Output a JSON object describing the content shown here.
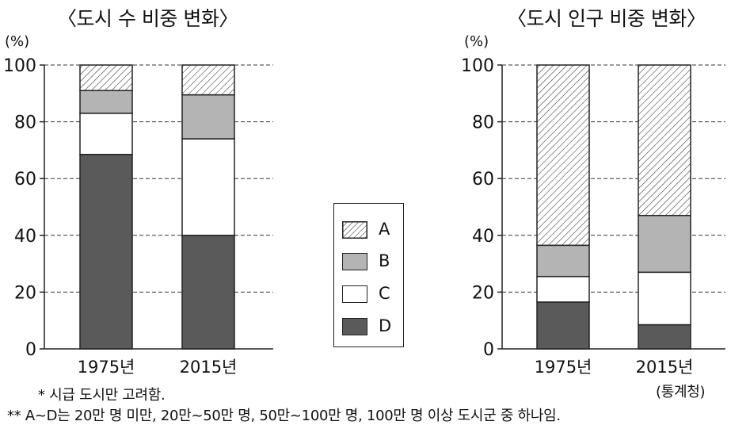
{
  "colors": {
    "A": "hatched",
    "B": "#b4b4b4",
    "C": "#ffffff",
    "D": "#5a5a5a"
  },
  "legend": {
    "items": [
      {
        "key": "A",
        "label": "A"
      },
      {
        "key": "B",
        "label": "B"
      },
      {
        "key": "C",
        "label": "C"
      },
      {
        "key": "D",
        "label": "D"
      }
    ]
  },
  "notes": {
    "note1": "* 시급 도시만 고려함.",
    "note2": "** A~D는 20만 명 미만, 20만~50만 명, 50만~100만 명, 100만 명 이상 도시군 중 하나임.",
    "source": "(통계청)"
  },
  "chart_data": [
    {
      "type": "bar",
      "stacked": true,
      "title": "〈도시 수 비중 변화〉",
      "ylabel": "(%)",
      "ylim": [
        0,
        100
      ],
      "yticks": [
        "0",
        "20",
        "40",
        "60",
        "80",
        "100"
      ],
      "grid": "dashed horizontal",
      "categories": [
        "1975년",
        "2015년"
      ],
      "series": [
        {
          "name": "D",
          "values": [
            68.5,
            40
          ]
        },
        {
          "name": "C",
          "values": [
            14.5,
            34
          ]
        },
        {
          "name": "B",
          "values": [
            8,
            15.5
          ]
        },
        {
          "name": "A",
          "values": [
            9,
            10.5
          ]
        }
      ]
    },
    {
      "type": "bar",
      "stacked": true,
      "title": "〈도시 인구 비중 변화〉",
      "ylabel": "(%)",
      "ylim": [
        0,
        100
      ],
      "yticks": [
        "0",
        "20",
        "40",
        "60",
        "80",
        "100"
      ],
      "grid": "dashed horizontal",
      "categories": [
        "1975년",
        "2015년"
      ],
      "series": [
        {
          "name": "D",
          "values": [
            16.5,
            8.5
          ]
        },
        {
          "name": "C",
          "values": [
            9,
            18.5
          ]
        },
        {
          "name": "B",
          "values": [
            11,
            20
          ]
        },
        {
          "name": "A",
          "values": [
            63.5,
            53
          ]
        }
      ]
    }
  ]
}
